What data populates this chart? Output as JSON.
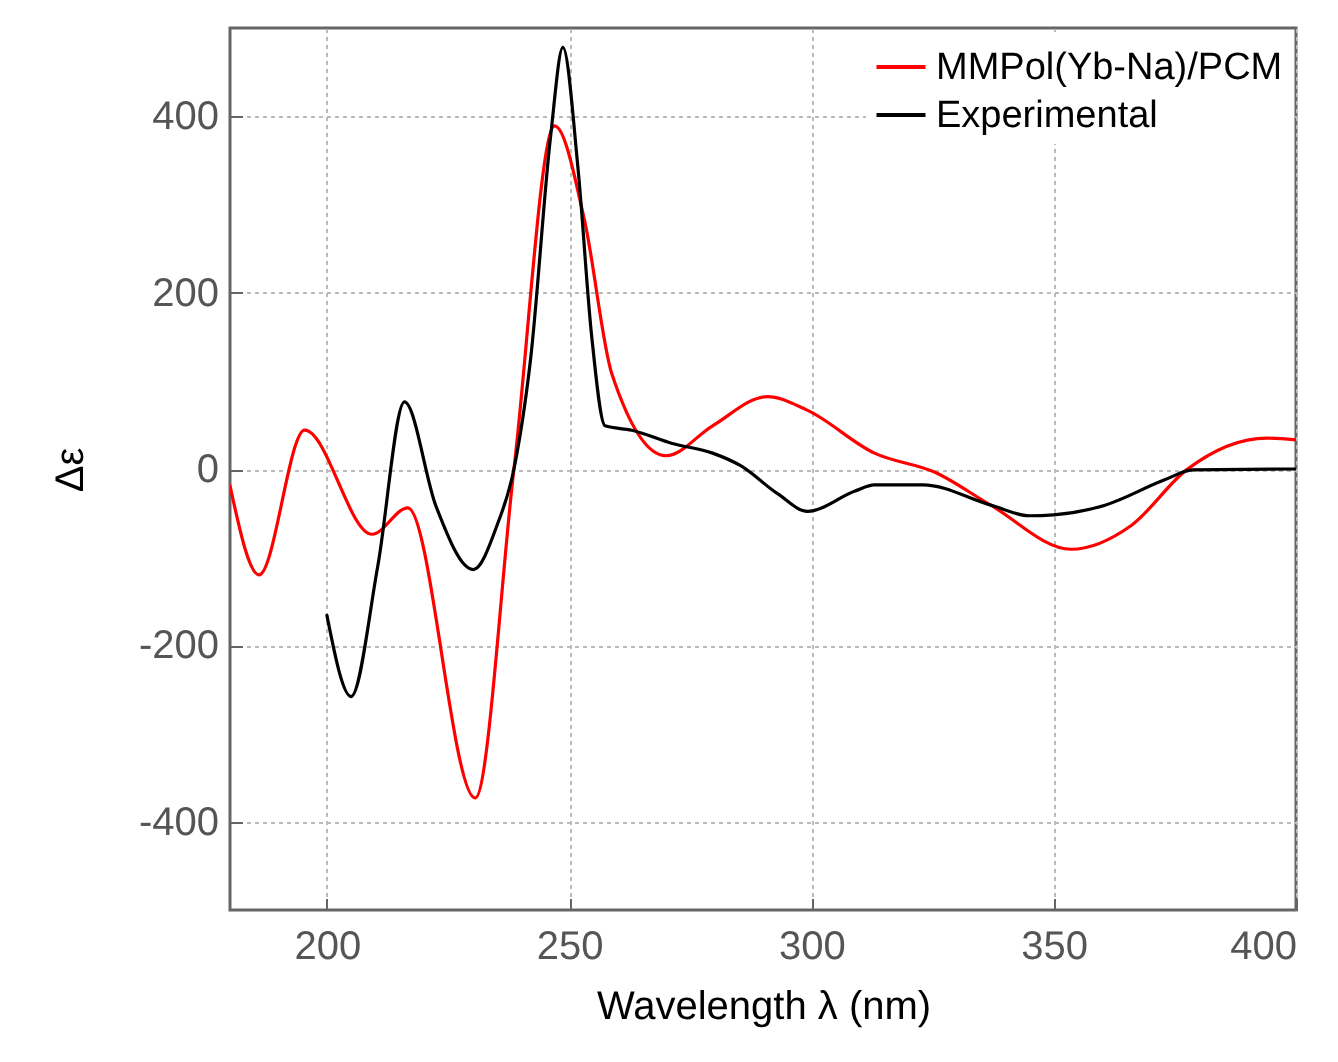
{
  "chart_data": {
    "type": "line",
    "xlabel": "Wavelength λ (nm)",
    "ylabel": "Δε",
    "xlim": [
      180,
      400
    ],
    "xticks": [
      200,
      250,
      300,
      350,
      400
    ],
    "ylim": [
      -500,
      500
    ],
    "yticks": [
      -400,
      -200,
      0,
      200,
      400
    ],
    "grid": true,
    "legend": "top right",
    "line_style": "solid",
    "series": [
      {
        "name": "MMPol(Yb-Na)/PCM",
        "color": "#ff0000",
        "x": [
          180,
          186,
          195.4,
          209.3,
          216.7,
          230.6,
          238.6,
          247,
          253.2,
          258.8,
          270,
          279.6,
          290.9,
          299,
          313,
          325.6,
          337,
          353.6,
          366,
          377.4,
          394,
          400
        ],
        "values": [
          -19,
          -120,
          44,
          -74,
          -44,
          -373,
          0,
          389,
          281,
          108,
          15,
          49,
          82,
          67,
          18,
          -4,
          -41,
          -91,
          -64,
          -1,
          35,
          33
        ]
      },
      {
        "name": "Experimental",
        "color": "#000000",
        "x": [
          200,
          205,
          210.5,
          216,
          222.5,
          230.2,
          235.1,
          238.6,
          242,
          246.2,
          248.7,
          251.8,
          254.6,
          257.4,
          262.9,
          271.3,
          279.6,
          285.3,
          293,
          299.2,
          309,
          313,
          323,
          337,
          345,
          350,
          360.6,
          373,
          378.7,
          400
        ],
        "values": [
          -166,
          -258,
          -110,
          76,
          -42,
          -114,
          -64,
          0,
          123,
          379,
          478,
          342,
          153,
          49,
          44,
          29,
          18,
          4,
          -28,
          -48,
          -25,
          -18,
          -18,
          -41,
          -53,
          -52,
          -41,
          -12,
          -1,
          0
        ]
      }
    ]
  }
}
